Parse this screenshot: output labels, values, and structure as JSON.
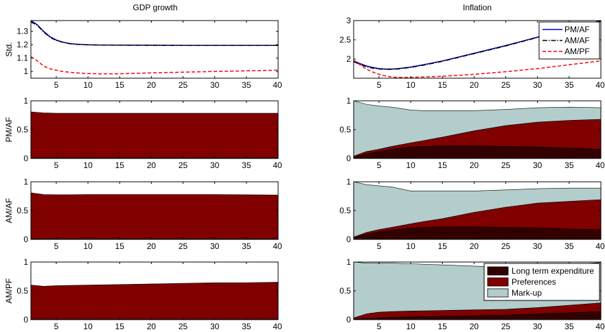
{
  "figure": {
    "left_title": "GDP growth",
    "right_title": "Inflation"
  },
  "colors": {
    "pmaf": "#0000cc",
    "amaf": "#000000",
    "ampf": "#ff0000",
    "long_term": "#330000",
    "preferences": "#800000",
    "markup": "#b3cccc"
  },
  "chart_data": [
    {
      "id": "gdp_std",
      "type": "line",
      "title": "GDP growth",
      "ylabel": "Std.",
      "xlim": [
        1,
        40
      ],
      "ylim": [
        0.95,
        1.38
      ],
      "yticks": [
        1,
        1.1,
        1.2,
        1.3
      ],
      "xticks": [
        5,
        10,
        15,
        20,
        25,
        30,
        35,
        40
      ],
      "series": [
        {
          "key": "pmaf",
          "style": "solid",
          "x": [
            1,
            2,
            3,
            4,
            5,
            6,
            7,
            8,
            10,
            12,
            15,
            20,
            25,
            30,
            35,
            40
          ],
          "values": [
            1.38,
            1.35,
            1.3,
            1.26,
            1.235,
            1.22,
            1.21,
            1.205,
            1.2,
            1.198,
            1.197,
            1.196,
            1.195,
            1.195,
            1.195,
            1.195
          ]
        },
        {
          "key": "amaf",
          "style": "dashdot",
          "x": [
            1,
            2,
            3,
            4,
            5,
            6,
            7,
            8,
            10,
            12,
            15,
            20,
            25,
            30,
            35,
            40
          ],
          "values": [
            1.37,
            1.345,
            1.295,
            1.255,
            1.232,
            1.218,
            1.208,
            1.203,
            1.199,
            1.197,
            1.196,
            1.195,
            1.194,
            1.194,
            1.194,
            1.194
          ]
        },
        {
          "key": "ampf",
          "style": "dashed",
          "x": [
            1,
            2,
            3,
            4,
            5,
            6,
            7,
            8,
            10,
            12,
            15,
            20,
            25,
            30,
            35,
            40
          ],
          "values": [
            1.11,
            1.08,
            1.04,
            1.02,
            1.01,
            1.0,
            0.995,
            0.99,
            0.985,
            0.982,
            0.983,
            0.99,
            0.995,
            1.0,
            1.005,
            1.01
          ]
        }
      ]
    },
    {
      "id": "infl_std",
      "type": "line",
      "title": "Inflation",
      "xlim": [
        1,
        40
      ],
      "ylim": [
        1.5,
        3
      ],
      "yticks": [
        2,
        2.5,
        3
      ],
      "xticks": [
        5,
        10,
        15,
        20,
        25,
        30,
        35,
        40
      ],
      "legend": {
        "position": "top-right",
        "entries": [
          {
            "key": "pmaf",
            "label": "PM/AF"
          },
          {
            "key": "amaf",
            "label": "AM/AF"
          },
          {
            "key": "ampf",
            "label": "AM/PF"
          }
        ]
      },
      "series": [
        {
          "key": "pmaf",
          "style": "solid",
          "x": [
            1,
            2,
            3,
            4,
            5,
            6,
            7,
            8,
            9,
            10,
            12,
            15,
            20,
            25,
            30,
            35,
            40
          ],
          "values": [
            1.95,
            1.88,
            1.82,
            1.78,
            1.75,
            1.74,
            1.74,
            1.75,
            1.77,
            1.79,
            1.85,
            1.95,
            2.15,
            2.35,
            2.57,
            2.78,
            3.0
          ]
        },
        {
          "key": "amaf",
          "style": "dashdot",
          "x": [
            1,
            2,
            3,
            4,
            5,
            6,
            7,
            8,
            9,
            10,
            12,
            15,
            20,
            25,
            30,
            35,
            40
          ],
          "values": [
            1.93,
            1.86,
            1.8,
            1.76,
            1.74,
            1.73,
            1.73,
            1.74,
            1.76,
            1.78,
            1.84,
            1.94,
            2.14,
            2.34,
            2.56,
            2.77,
            2.98
          ]
        },
        {
          "key": "ampf",
          "style": "dashed",
          "x": [
            1,
            2,
            3,
            4,
            5,
            6,
            7,
            8,
            9,
            10,
            12,
            15,
            20,
            25,
            30,
            35,
            40
          ],
          "values": [
            1.97,
            1.85,
            1.74,
            1.66,
            1.6,
            1.56,
            1.53,
            1.52,
            1.52,
            1.52,
            1.53,
            1.55,
            1.6,
            1.67,
            1.75,
            1.85,
            1.95
          ]
        }
      ]
    },
    {
      "id": "gdp_pmaf",
      "type": "area",
      "ylabel": "PM/AF",
      "xlim": [
        1,
        40
      ],
      "ylim": [
        0,
        1
      ],
      "yticks": [
        0,
        0.5,
        1
      ],
      "xticks": [
        5,
        10,
        15,
        20,
        25,
        30,
        35,
        40
      ],
      "x": [
        1,
        3,
        5,
        10,
        15,
        20,
        25,
        30,
        35,
        40
      ],
      "series": [
        {
          "key": "long_term",
          "values": [
            0.01,
            0.01,
            0.01,
            0.01,
            0.01,
            0.01,
            0.01,
            0.01,
            0.01,
            0.01
          ]
        },
        {
          "key": "preferences",
          "values": [
            0.8,
            0.78,
            0.775,
            0.775,
            0.775,
            0.775,
            0.775,
            0.775,
            0.775,
            0.775
          ]
        }
      ]
    },
    {
      "id": "infl_pmaf",
      "type": "area",
      "xlim": [
        1,
        40
      ],
      "ylim": [
        0,
        1
      ],
      "yticks": [
        0,
        0.5,
        1
      ],
      "xticks": [
        5,
        10,
        15,
        20,
        25,
        30,
        35,
        40
      ],
      "x": [
        1,
        3,
        5,
        7,
        10,
        12,
        15,
        20,
        25,
        30,
        35,
        40
      ],
      "series": [
        {
          "key": "long_term",
          "values": [
            0.02,
            0.08,
            0.12,
            0.16,
            0.2,
            0.21,
            0.22,
            0.22,
            0.21,
            0.2,
            0.18,
            0.16
          ]
        },
        {
          "key": "preferences",
          "values": [
            0.02,
            0.04,
            0.04,
            0.05,
            0.07,
            0.1,
            0.15,
            0.26,
            0.36,
            0.43,
            0.48,
            0.52
          ]
        },
        {
          "key": "markup",
          "values": [
            0.96,
            0.82,
            0.75,
            0.68,
            0.57,
            0.52,
            0.46,
            0.35,
            0.28,
            0.25,
            0.23,
            0.2
          ]
        }
      ]
    },
    {
      "id": "gdp_amaf",
      "type": "area",
      "ylabel": "AM/AF",
      "xlim": [
        1,
        40
      ],
      "ylim": [
        0,
        1
      ],
      "yticks": [
        0,
        0.5,
        1
      ],
      "xticks": [
        5,
        10,
        15,
        20,
        25,
        30,
        35,
        40
      ],
      "x": [
        1,
        3,
        5,
        7,
        10,
        15,
        20,
        25,
        30,
        35,
        40
      ],
      "series": [
        {
          "key": "long_term",
          "values": [
            0.01,
            0.01,
            0.01,
            0.01,
            0.01,
            0.01,
            0.01,
            0.01,
            0.01,
            0.01,
            0.01
          ]
        },
        {
          "key": "preferences",
          "values": [
            0.8,
            0.77,
            0.765,
            0.765,
            0.77,
            0.77,
            0.77,
            0.77,
            0.77,
            0.765,
            0.76
          ]
        }
      ]
    },
    {
      "id": "infl_amaf",
      "type": "area",
      "xlim": [
        1,
        40
      ],
      "ylim": [
        0,
        1
      ],
      "yticks": [
        0,
        0.5,
        1
      ],
      "xticks": [
        5,
        10,
        15,
        20,
        25,
        30,
        35,
        40
      ],
      "x": [
        1,
        3,
        5,
        7,
        10,
        12,
        15,
        20,
        25,
        30,
        35,
        40
      ],
      "series": [
        {
          "key": "long_term",
          "values": [
            0.03,
            0.09,
            0.13,
            0.16,
            0.2,
            0.21,
            0.22,
            0.22,
            0.21,
            0.2,
            0.18,
            0.17
          ]
        },
        {
          "key": "preferences",
          "values": [
            0.01,
            0.03,
            0.04,
            0.05,
            0.07,
            0.1,
            0.14,
            0.25,
            0.35,
            0.43,
            0.48,
            0.52
          ]
        },
        {
          "key": "markup",
          "values": [
            0.96,
            0.83,
            0.76,
            0.7,
            0.57,
            0.53,
            0.48,
            0.37,
            0.3,
            0.25,
            0.23,
            0.2
          ]
        }
      ]
    },
    {
      "id": "gdp_ampf",
      "type": "area",
      "ylabel": "AM/PF",
      "xlim": [
        1,
        40
      ],
      "ylim": [
        0,
        1
      ],
      "yticks": [
        0,
        0.5,
        1
      ],
      "xticks": [
        5,
        10,
        15,
        20,
        25,
        30,
        35,
        40
      ],
      "x": [
        1,
        3,
        5,
        10,
        15,
        20,
        25,
        30,
        35,
        40
      ],
      "series": [
        {
          "key": "long_term",
          "values": [
            0.01,
            0.01,
            0.01,
            0.01,
            0.01,
            0.01,
            0.01,
            0.01,
            0.01,
            0.01
          ]
        },
        {
          "key": "preferences",
          "values": [
            0.59,
            0.57,
            0.58,
            0.59,
            0.6,
            0.61,
            0.62,
            0.63,
            0.63,
            0.64
          ]
        }
      ]
    },
    {
      "id": "infl_ampf",
      "type": "area",
      "xlim": [
        1,
        40
      ],
      "ylim": [
        0,
        1
      ],
      "yticks": [
        0,
        0.5,
        1
      ],
      "xticks": [
        5,
        10,
        15,
        20,
        25,
        30,
        35,
        40
      ],
      "legend": {
        "position": "top-right",
        "entries": [
          {
            "key": "long_term",
            "label": "Long term expenditure"
          },
          {
            "key": "preferences",
            "label": "Preferences"
          },
          {
            "key": "markup",
            "label": "Mark-up"
          }
        ]
      },
      "x": [
        1,
        3,
        5,
        7,
        10,
        15,
        20,
        25,
        30,
        35,
        40
      ],
      "series": [
        {
          "key": "long_term",
          "values": [
            0.01,
            0.02,
            0.03,
            0.04,
            0.05,
            0.06,
            0.07,
            0.08,
            0.1,
            0.12,
            0.14
          ]
        },
        {
          "key": "preferences",
          "values": [
            0.02,
            0.08,
            0.1,
            0.1,
            0.1,
            0.1,
            0.1,
            0.1,
            0.11,
            0.13,
            0.15
          ]
        },
        {
          "key": "markup",
          "values": [
            0.97,
            0.88,
            0.85,
            0.84,
            0.82,
            0.79,
            0.76,
            0.73,
            0.71,
            0.71,
            0.7
          ]
        }
      ]
    }
  ]
}
